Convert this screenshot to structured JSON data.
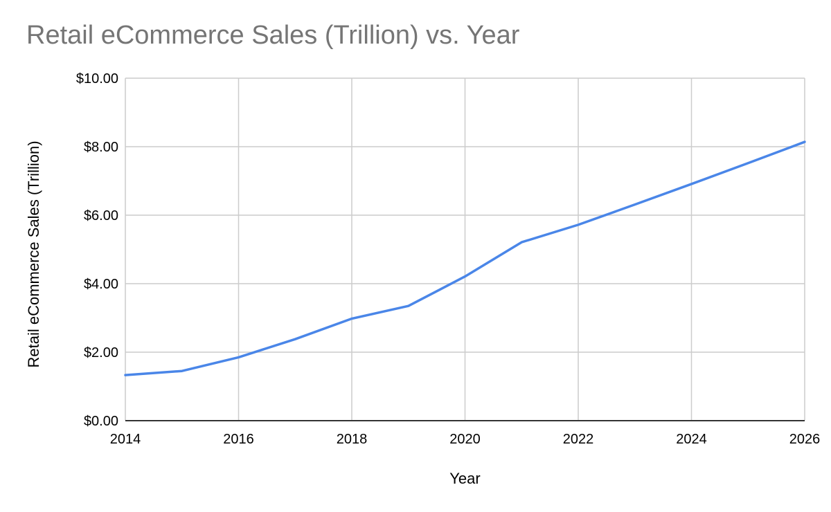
{
  "chart_data": {
    "type": "line",
    "title": "Retail eCommerce Sales (Trillion) vs. Year",
    "xlabel": "Year",
    "ylabel": "Retail eCommerce Sales (Trillion)",
    "x": [
      2014,
      2015,
      2016,
      2017,
      2018,
      2019,
      2020,
      2021,
      2022,
      2023,
      2024,
      2025,
      2026
    ],
    "series": [
      {
        "values": [
          1.33,
          1.45,
          1.85,
          2.38,
          2.98,
          3.35,
          4.21,
          5.21,
          5.72,
          6.31,
          6.91,
          7.52,
          8.14
        ]
      }
    ],
    "xlim": [
      2014,
      2026
    ],
    "ylim": [
      0,
      10
    ],
    "x_ticks": [
      "2014",
      "2016",
      "2018",
      "2020",
      "2022",
      "2024",
      "2026"
    ],
    "y_ticks": [
      "$0.00",
      "$2.00",
      "$4.00",
      "$6.00",
      "$8.00",
      "$10.00"
    ],
    "grid": true,
    "line_color": "#4a86e8",
    "grid_color": "#cccccc",
    "axis_color": "#333333",
    "title_color": "#757575"
  }
}
